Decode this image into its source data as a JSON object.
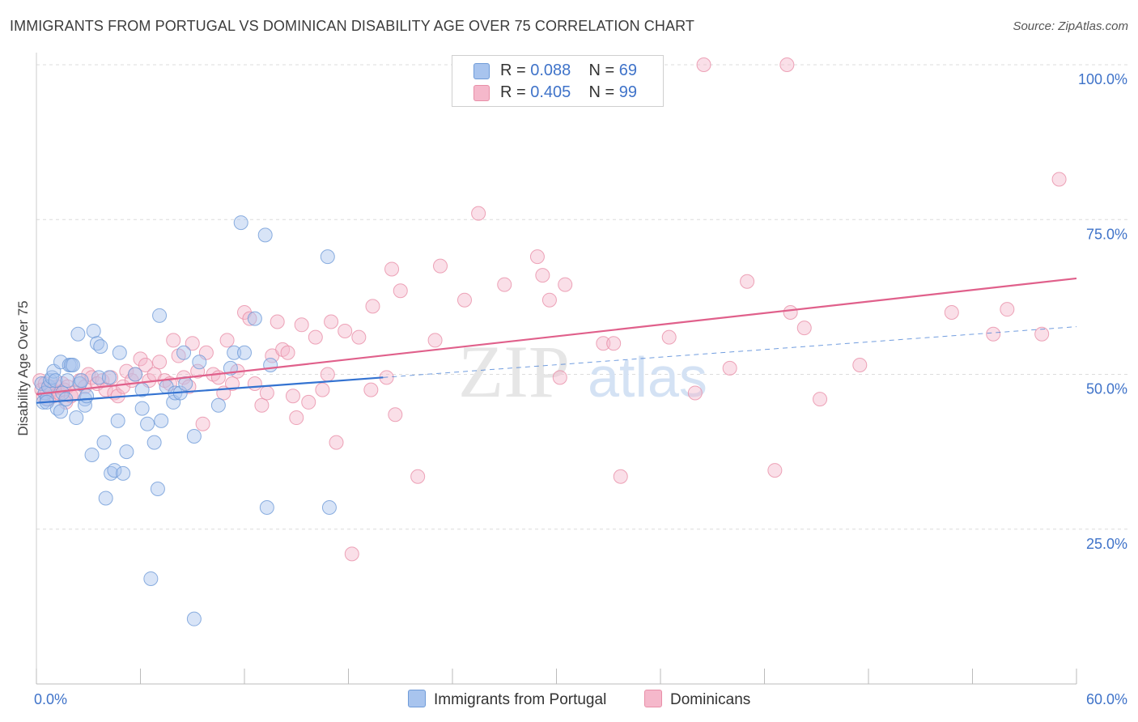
{
  "title": "IMMIGRANTS FROM PORTUGAL VS DOMINICAN DISABILITY AGE OVER 75 CORRELATION CHART",
  "source": "Source: ZipAtlas.com",
  "watermark": {
    "zip": "ZIP",
    "atlas": "atlas"
  },
  "legend": {
    "r_label": "R =",
    "n_label": "N =",
    "rows": [
      {
        "r": "0.088",
        "n": "69",
        "color": "#a8c4ee"
      },
      {
        "r": "0.405",
        "n": "99",
        "color": "#f5b8cb"
      }
    ]
  },
  "bottom_legend": [
    "Immigrants from Portugal",
    "Dominicans"
  ],
  "colors": {
    "blue_fill": "#a8c4ee",
    "blue_stroke": "#6f9bd8",
    "blue_line": "#3473d1",
    "pink_fill": "#f5b8cb",
    "pink_stroke": "#e88fa8",
    "pink_line": "#e0608b",
    "tick_label": "#3f73c9",
    "grid": "#dcdcdc"
  },
  "chart_data": {
    "type": "scatter",
    "title": "IMMIGRANTS FROM PORTUGAL VS DOMINICAN DISABILITY AGE OVER 75 CORRELATION CHART",
    "xlabel": "",
    "ylabel": "Disability Age Over 75",
    "xlim": [
      0,
      60
    ],
    "ylim": [
      0,
      102.5
    ],
    "x_tick_labels": [
      "0.0%",
      "60.0%"
    ],
    "y_ticks": [
      25,
      50,
      75,
      100
    ],
    "y_tick_labels": [
      "25.0%",
      "50.0%",
      "75.0%",
      "100.0%"
    ],
    "grid": true,
    "legend_position": "top-center",
    "series": [
      {
        "name": "Immigrants from Portugal",
        "R": 0.088,
        "N": 69,
        "trend": {
          "solid": [
            [
              0,
              45.4
            ],
            [
              20,
              49.5
            ]
          ],
          "dashed": [
            [
              20,
              49.5
            ],
            [
              60,
              57.7
            ]
          ]
        },
        "points": [
          [
            0.3,
            48.5
          ],
          [
            0.4,
            45.5
          ],
          [
            0.5,
            47.0
          ],
          [
            0.6,
            46.0
          ],
          [
            0.7,
            48.0
          ],
          [
            0.8,
            49.0
          ],
          [
            0.9,
            49.5
          ],
          [
            1.0,
            50.5
          ],
          [
            1.1,
            49.0
          ],
          [
            1.2,
            44.5
          ],
          [
            1.4,
            44.0
          ],
          [
            1.4,
            52.0
          ],
          [
            1.5,
            47.0
          ],
          [
            1.7,
            46.0
          ],
          [
            1.8,
            49.0
          ],
          [
            1.9,
            51.5
          ],
          [
            2.0,
            51.5
          ],
          [
            2.1,
            51.5
          ],
          [
            2.3,
            43.0
          ],
          [
            2.4,
            56.5
          ],
          [
            2.5,
            48.5
          ],
          [
            2.6,
            49.0
          ],
          [
            2.8,
            46.0
          ],
          [
            2.8,
            45.0
          ],
          [
            2.9,
            46.5
          ],
          [
            3.2,
            37.0
          ],
          [
            3.3,
            57.0
          ],
          [
            3.5,
            55.0
          ],
          [
            3.6,
            49.5
          ],
          [
            3.7,
            54.5
          ],
          [
            3.9,
            39.0
          ],
          [
            4.0,
            30.0
          ],
          [
            4.2,
            49.5
          ],
          [
            4.3,
            34.0
          ],
          [
            4.5,
            34.5
          ],
          [
            4.7,
            42.5
          ],
          [
            4.8,
            53.5
          ],
          [
            5.0,
            34.0
          ],
          [
            5.2,
            37.5
          ],
          [
            5.7,
            50.0
          ],
          [
            6.1,
            44.5
          ],
          [
            6.1,
            47.5
          ],
          [
            6.4,
            42.0
          ],
          [
            6.6,
            17.0
          ],
          [
            6.8,
            39.0
          ],
          [
            7.0,
            31.5
          ],
          [
            7.1,
            59.5
          ],
          [
            7.2,
            42.5
          ],
          [
            7.5,
            48.0
          ],
          [
            7.9,
            45.5
          ],
          [
            8.0,
            47.0
          ],
          [
            8.3,
            47.0
          ],
          [
            8.5,
            53.5
          ],
          [
            8.6,
            48.5
          ],
          [
            9.1,
            10.5
          ],
          [
            9.1,
            40.0
          ],
          [
            9.4,
            52.0
          ],
          [
            10.5,
            45.0
          ],
          [
            11.2,
            51.0
          ],
          [
            11.4,
            53.5
          ],
          [
            11.8,
            74.5
          ],
          [
            12.0,
            53.5
          ],
          [
            12.6,
            59.0
          ],
          [
            13.2,
            72.5
          ],
          [
            13.3,
            28.5
          ],
          [
            13.5,
            51.5
          ],
          [
            16.8,
            69.0
          ],
          [
            16.9,
            28.5
          ],
          [
            0.6,
            45.5
          ]
        ]
      },
      {
        "name": "Dominicans",
        "R": 0.405,
        "N": 99,
        "trend": {
          "solid": [
            [
              0,
              46.8
            ],
            [
              60,
              65.5
            ]
          ]
        },
        "points": [
          [
            0.2,
            49.0
          ],
          [
            0.3,
            47.5
          ],
          [
            0.4,
            46.5
          ],
          [
            0.5,
            48.5
          ],
          [
            0.6,
            47.0
          ],
          [
            0.7,
            46.0
          ],
          [
            0.8,
            48.0
          ],
          [
            0.9,
            47.5
          ],
          [
            1.0,
            46.5
          ],
          [
            1.2,
            48.0
          ],
          [
            1.3,
            47.0
          ],
          [
            1.5,
            48.5
          ],
          [
            1.6,
            47.5
          ],
          [
            1.7,
            45.5
          ],
          [
            1.8,
            48.0
          ],
          [
            2.0,
            46.5
          ],
          [
            2.2,
            47.0
          ],
          [
            2.5,
            49.0
          ],
          [
            2.8,
            48.0
          ],
          [
            3.0,
            50.0
          ],
          [
            3.2,
            49.5
          ],
          [
            3.5,
            48.5
          ],
          [
            3.8,
            49.0
          ],
          [
            4.0,
            47.5
          ],
          [
            4.3,
            49.5
          ],
          [
            4.5,
            47.0
          ],
          [
            4.7,
            46.5
          ],
          [
            5.0,
            48.0
          ],
          [
            5.2,
            50.5
          ],
          [
            5.5,
            49.0
          ],
          [
            5.7,
            50.0
          ],
          [
            6.0,
            52.5
          ],
          [
            6.3,
            51.5
          ],
          [
            6.5,
            49.0
          ],
          [
            6.8,
            50.0
          ],
          [
            7.1,
            52.0
          ],
          [
            7.4,
            49.0
          ],
          [
            7.7,
            48.5
          ],
          [
            7.9,
            55.5
          ],
          [
            8.2,
            53.0
          ],
          [
            8.5,
            49.5
          ],
          [
            8.8,
            48.0
          ],
          [
            9.0,
            55.0
          ],
          [
            9.3,
            50.5
          ],
          [
            9.6,
            42.0
          ],
          [
            9.8,
            53.5
          ],
          [
            10.2,
            50.0
          ],
          [
            10.5,
            49.5
          ],
          [
            10.8,
            47.0
          ],
          [
            11.0,
            55.5
          ],
          [
            11.3,
            48.5
          ],
          [
            11.6,
            50.5
          ],
          [
            12.0,
            60.0
          ],
          [
            12.3,
            59.0
          ],
          [
            12.6,
            48.5
          ],
          [
            13.0,
            45.0
          ],
          [
            13.3,
            47.0
          ],
          [
            13.6,
            53.0
          ],
          [
            13.9,
            58.5
          ],
          [
            14.2,
            54.0
          ],
          [
            14.5,
            53.5
          ],
          [
            14.8,
            46.5
          ],
          [
            15.0,
            43.0
          ],
          [
            15.3,
            58.0
          ],
          [
            15.7,
            45.5
          ],
          [
            16.1,
            56.0
          ],
          [
            16.5,
            47.5
          ],
          [
            16.8,
            50.0
          ],
          [
            17.0,
            58.5
          ],
          [
            17.3,
            39.0
          ],
          [
            17.8,
            57.0
          ],
          [
            18.2,
            21.0
          ],
          [
            18.6,
            56.0
          ],
          [
            19.3,
            47.5
          ],
          [
            19.4,
            61.0
          ],
          [
            20.2,
            49.5
          ],
          [
            20.5,
            67.0
          ],
          [
            20.7,
            43.5
          ],
          [
            21.0,
            63.5
          ],
          [
            22.0,
            33.5
          ],
          [
            23.0,
            55.5
          ],
          [
            23.3,
            67.5
          ],
          [
            24.7,
            62.0
          ],
          [
            25.5,
            76.0
          ],
          [
            27.0,
            64.5
          ],
          [
            28.9,
            69.0
          ],
          [
            29.2,
            66.0
          ],
          [
            29.6,
            62.0
          ],
          [
            30.5,
            64.5
          ],
          [
            32.7,
            55.0
          ],
          [
            33.3,
            55.0
          ],
          [
            38.0,
            47.0
          ],
          [
            40.0,
            51.0
          ],
          [
            41.0,
            65.0
          ],
          [
            43.5,
            60.0
          ],
          [
            47.5,
            51.5
          ],
          [
            56.0,
            60.5
          ],
          [
            58.0,
            56.5
          ],
          [
            59.0,
            81.5
          ]
        ]
      },
      {
        "name": "Dominicans (top)",
        "points": [
          [
            38.5,
            100.0
          ],
          [
            43.3,
            100.0
          ],
          [
            42.6,
            34.5
          ],
          [
            44.3,
            57.5
          ],
          [
            45.2,
            46.0
          ],
          [
            30.2,
            49.5
          ],
          [
            33.7,
            33.5
          ],
          [
            36.5,
            56.0
          ],
          [
            52.8,
            60.0
          ],
          [
            55.2,
            56.5
          ]
        ]
      }
    ]
  }
}
